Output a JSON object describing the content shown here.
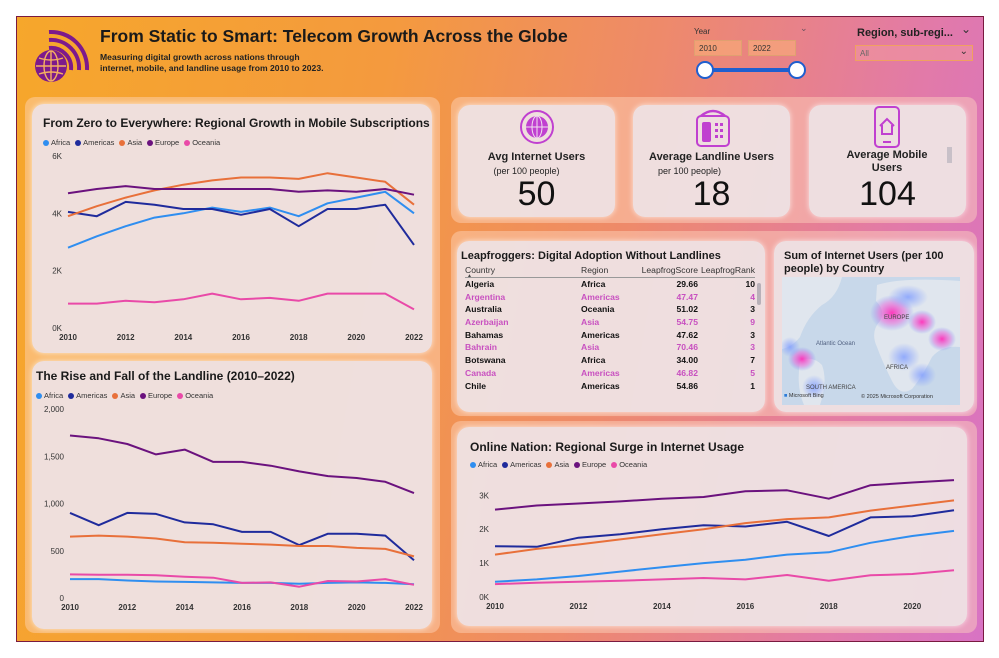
{
  "header": {
    "title": "From Static to Smart: Telecom Growth Across the Globe",
    "subtitle": "Measuring digital growth across nations through internet, mobile, and landline usage from 2010 to 2023."
  },
  "filters": {
    "year_label": "Year",
    "year_start": "2010",
    "year_end": "2022",
    "region_label": "Region, sub-regi...",
    "region_value": "All"
  },
  "kpis": [
    {
      "label": "Avg Internet Users",
      "sub": "(per 100 people)",
      "value": "50",
      "icon": "globe-icon"
    },
    {
      "label": "Average Landline Users",
      "sub": "per 100 people)",
      "value": "18",
      "icon": "telephone-icon"
    },
    {
      "label": "Average Mobile Users",
      "sub": "",
      "value": "104",
      "icon": "smartphone-icon"
    }
  ],
  "colors": {
    "Africa": "#2f8ef0",
    "Americas": "#1f2b9c",
    "Asia": "#e8703a",
    "Europe": "#6b127e",
    "Oceania": "#e94aa8"
  },
  "leapfrog": {
    "title": "Leapfroggers: Digital Adoption Without Landlines",
    "columns": [
      "Country",
      "Region",
      "LeapfrogScore",
      "LeapfrogRank"
    ],
    "rows": [
      [
        "Algeria",
        "Africa",
        "29.66",
        "10"
      ],
      [
        "Argentina",
        "Americas",
        "47.47",
        "4"
      ],
      [
        "Australia",
        "Oceania",
        "51.02",
        "3"
      ],
      [
        "Azerbaijan",
        "Asia",
        "54.75",
        "9"
      ],
      [
        "Bahamas",
        "Americas",
        "47.62",
        "3"
      ],
      [
        "Bahrain",
        "Asia",
        "70.46",
        "3"
      ],
      [
        "Botswana",
        "Africa",
        "34.00",
        "7"
      ],
      [
        "Canada",
        "Americas",
        "46.82",
        "5"
      ],
      [
        "Chile",
        "Americas",
        "54.86",
        "1"
      ]
    ]
  },
  "map": {
    "title": "Sum of Internet Users (per 100 people) by Country",
    "labels": {
      "europe": "EUROPE",
      "atlantic": "Atlantic Ocean",
      "africa": "AFRICA",
      "south_america": "SOUTH AMERICA"
    },
    "brand": "Microsoft Bing",
    "copyright": "© 2025 Microsoft Corporation"
  },
  "chart_data": [
    {
      "id": "mobile",
      "type": "line",
      "title": "From Zero to Everywhere: Regional Growth in Mobile Subscriptions",
      "x": [
        2010,
        2011,
        2012,
        2013,
        2014,
        2015,
        2016,
        2017,
        2018,
        2019,
        2020,
        2021,
        2022
      ],
      "xticks": [
        "2010",
        "2012",
        "2014",
        "2016",
        "2018",
        "2020",
        "2022"
      ],
      "yticks": [
        "0K",
        "2K",
        "4K",
        "6K"
      ],
      "ylim": [
        0,
        6000
      ],
      "series": [
        {
          "name": "Africa",
          "values": [
            2800,
            3200,
            3550,
            3850,
            4000,
            4200,
            4050,
            4200,
            3900,
            4350,
            4550,
            4750,
            4000
          ]
        },
        {
          "name": "Americas",
          "values": [
            4050,
            3900,
            4400,
            4300,
            4150,
            4150,
            3950,
            4150,
            3550,
            4150,
            4150,
            4300,
            2900
          ]
        },
        {
          "name": "Asia",
          "values": [
            3900,
            4250,
            4550,
            4800,
            5000,
            5150,
            5250,
            5250,
            5200,
            5400,
            5250,
            5100,
            4300
          ]
        },
        {
          "name": "Europe",
          "values": [
            4700,
            4850,
            4950,
            4850,
            4850,
            4850,
            4850,
            4850,
            4750,
            4800,
            4750,
            4850,
            4650
          ]
        },
        {
          "name": "Oceania",
          "values": [
            850,
            850,
            950,
            900,
            1000,
            1200,
            1000,
            1050,
            950,
            1200,
            1200,
            1200,
            650
          ]
        }
      ]
    },
    {
      "id": "landline",
      "type": "line",
      "title": "The Rise and Fall of the Landline (2010–2022)",
      "x": [
        2010,
        2011,
        2012,
        2013,
        2014,
        2015,
        2016,
        2017,
        2018,
        2019,
        2020,
        2021,
        2022
      ],
      "xticks": [
        "2010",
        "2012",
        "2014",
        "2016",
        "2018",
        "2020",
        "2022"
      ],
      "yticks": [
        "0",
        "500",
        "1,000",
        "1,500",
        "2,000"
      ],
      "ylim": [
        0,
        2000
      ],
      "series": [
        {
          "name": "Africa",
          "values": [
            200,
            200,
            185,
            175,
            170,
            165,
            160,
            160,
            150,
            160,
            165,
            160,
            145
          ]
        },
        {
          "name": "Americas",
          "values": [
            900,
            770,
            900,
            890,
            800,
            780,
            700,
            700,
            560,
            680,
            680,
            660,
            400
          ]
        },
        {
          "name": "Asia",
          "values": [
            650,
            660,
            650,
            630,
            590,
            585,
            575,
            565,
            550,
            550,
            530,
            520,
            440
          ]
        },
        {
          "name": "Europe",
          "values": [
            1720,
            1690,
            1630,
            1520,
            1570,
            1440,
            1440,
            1400,
            1340,
            1290,
            1270,
            1230,
            1110
          ]
        },
        {
          "name": "Oceania",
          "values": [
            250,
            245,
            245,
            240,
            225,
            215,
            160,
            165,
            120,
            180,
            175,
            200,
            140
          ]
        }
      ]
    },
    {
      "id": "internet",
      "type": "line",
      "title": "Online Nation: Regional Surge in Internet Usage",
      "x": [
        2010,
        2011,
        2012,
        2013,
        2014,
        2015,
        2016,
        2017,
        2018,
        2019,
        2020,
        2021
      ],
      "xticks": [
        "2010",
        "2012",
        "2014",
        "2016",
        "2018",
        "2020"
      ],
      "yticks": [
        "0K",
        "1K",
        "2K",
        "3K"
      ],
      "ylim": [
        0,
        3600
      ],
      "series": [
        {
          "name": "Africa",
          "values": [
            450,
            520,
            620,
            750,
            880,
            1000,
            1100,
            1250,
            1320,
            1600,
            1800,
            1950
          ]
        },
        {
          "name": "Americas",
          "values": [
            1500,
            1480,
            1750,
            1850,
            2000,
            2120,
            2080,
            2220,
            1800,
            2350,
            2380,
            2560
          ]
        },
        {
          "name": "Asia",
          "values": [
            1250,
            1420,
            1550,
            1700,
            1850,
            2000,
            2180,
            2300,
            2350,
            2550,
            2700,
            2850
          ]
        },
        {
          "name": "Europe",
          "values": [
            2580,
            2700,
            2760,
            2820,
            2900,
            2950,
            3120,
            3150,
            2900,
            3300,
            3380,
            3450
          ]
        },
        {
          "name": "Oceania",
          "values": [
            380,
            420,
            450,
            480,
            520,
            560,
            520,
            650,
            480,
            640,
            680,
            790
          ]
        }
      ]
    }
  ]
}
